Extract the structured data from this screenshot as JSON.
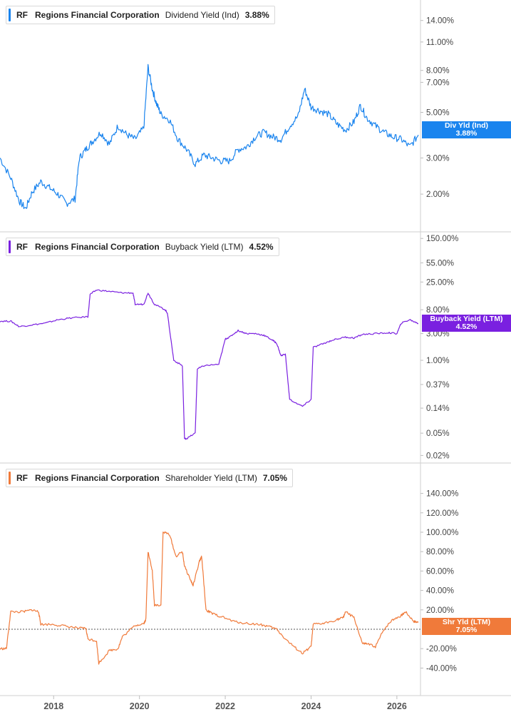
{
  "panels": [
    {
      "ticker": "RF",
      "company": "Regions Financial Corporation",
      "metric": "Dividend Yield (Ind)",
      "value": "3.88%",
      "tag_label": "Div Yld (Ind)",
      "tag_value": "3.88%",
      "color": "#1a84ee",
      "scale": "log",
      "y_ticks": [
        "14.00%",
        "11.00%",
        "8.00%",
        "7.00%",
        "5.00%",
        "3.00%",
        "2.00%"
      ]
    },
    {
      "ticker": "RF",
      "company": "Regions Financial Corporation",
      "metric": "Buyback Yield (LTM)",
      "value": "4.52%",
      "tag_label": "Buyback Yield (LTM)",
      "tag_value": "4.52%",
      "color": "#7a20e0",
      "scale": "log",
      "y_ticks": [
        "150.00%",
        "55.00%",
        "25.00%",
        "8.00%",
        "3.00%",
        "1.00%",
        "0.37%",
        "0.14%",
        "0.05%",
        "0.02%"
      ]
    },
    {
      "ticker": "RF",
      "company": "Regions Financial Corporation",
      "metric": "Shareholder Yield (LTM)",
      "value": "7.05%",
      "tag_label": "Shr Yld (LTM)",
      "tag_value": "7.05%",
      "color": "#f07a3a",
      "scale": "linear",
      "y_ticks": [
        "140.00%",
        "120.00%",
        "100.00%",
        "80.00%",
        "60.00%",
        "40.00%",
        "20.00%",
        "-20.00%",
        "-40.00%"
      ]
    }
  ],
  "x_ticks": [
    "2018",
    "2020",
    "2022",
    "2024",
    "2026"
  ],
  "chart_data": [
    {
      "type": "line",
      "scale": "log",
      "series": [
        {
          "name": "Dividend Yield (Ind)",
          "x": [
            2016.75,
            2017.0,
            2017.2,
            2017.35,
            2017.5,
            2017.7,
            2017.9,
            2018.1,
            2018.3,
            2018.5,
            2018.6,
            2018.75,
            2018.9,
            2019.1,
            2019.3,
            2019.5,
            2019.7,
            2019.9,
            2020.1,
            2020.2,
            2020.3,
            2020.4,
            2020.5,
            2020.7,
            2020.9,
            2021.1,
            2021.3,
            2021.5,
            2021.7,
            2021.9,
            2022.1,
            2022.3,
            2022.5,
            2022.7,
            2022.9,
            2023.1,
            2023.3,
            2023.5,
            2023.7,
            2023.85,
            2024.0,
            2024.2,
            2024.4,
            2024.6,
            2024.8,
            2025.0,
            2025.15,
            2025.3,
            2025.5,
            2025.7,
            2025.9,
            2026.1,
            2026.3,
            2026.5
          ],
          "y": [
            3.0,
            2.4,
            1.85,
            1.7,
            2.05,
            2.3,
            2.15,
            2.0,
            1.8,
            1.9,
            3.0,
            3.3,
            3.6,
            4.0,
            3.5,
            4.3,
            3.9,
            3.7,
            4.2,
            8.3,
            6.5,
            5.5,
            4.9,
            4.6,
            3.7,
            3.3,
            2.8,
            3.1,
            3.0,
            2.9,
            2.9,
            3.3,
            3.4,
            3.8,
            4.0,
            3.8,
            3.7,
            4.3,
            4.8,
            6.5,
            5.3,
            5.1,
            4.9,
            4.4,
            4.1,
            4.5,
            5.4,
            4.7,
            4.3,
            4.0,
            3.8,
            3.7,
            3.4,
            3.88
          ]
        }
      ],
      "ylim": [
        1.6,
        16
      ]
    },
    {
      "type": "line",
      "scale": "log",
      "series": [
        {
          "name": "Buyback Yield (LTM)",
          "x": [
            2016.75,
            2017.0,
            2017.2,
            2017.5,
            2017.8,
            2018.1,
            2018.4,
            2018.8,
            2018.85,
            2019.0,
            2019.3,
            2019.6,
            2019.85,
            2019.9,
            2020.1,
            2020.2,
            2020.35,
            2020.6,
            2020.65,
            2020.8,
            2021.0,
            2021.05,
            2021.1,
            2021.3,
            2021.35,
            2021.5,
            2021.85,
            2022.0,
            2022.1,
            2022.3,
            2022.5,
            2022.7,
            2022.9,
            2023.1,
            2023.2,
            2023.3,
            2023.4,
            2023.5,
            2023.8,
            2024.0,
            2024.05,
            2024.3,
            2024.5,
            2024.8,
            2025.0,
            2025.2,
            2025.5,
            2025.8,
            2026.0,
            2026.1,
            2026.3,
            2026.5
          ],
          "y": [
            5.0,
            5.0,
            4.0,
            4.3,
            4.6,
            5.3,
            5.7,
            6.0,
            15,
            18,
            17,
            16,
            16,
            10,
            10,
            16,
            10,
            8,
            7,
            1.0,
            0.8,
            0.04,
            0.04,
            0.05,
            0.7,
            0.8,
            0.85,
            2.4,
            2.6,
            3.4,
            3.0,
            3.0,
            2.8,
            2.3,
            2.0,
            1.2,
            1.3,
            0.2,
            0.15,
            0.2,
            1.7,
            2.0,
            2.3,
            2.6,
            2.5,
            2.9,
            3.0,
            3.1,
            3.0,
            4.6,
            5.3,
            4.52
          ]
        }
      ],
      "ylim": [
        0.016,
        180
      ]
    },
    {
      "type": "line",
      "scale": "linear",
      "series": [
        {
          "name": "Shareholder Yield (LTM)",
          "x": [
            2016.75,
            2016.9,
            2017.0,
            2017.3,
            2017.5,
            2017.65,
            2017.7,
            2018.0,
            2018.3,
            2018.6,
            2018.75,
            2018.8,
            2019.0,
            2019.05,
            2019.3,
            2019.5,
            2019.6,
            2019.9,
            2020.1,
            2020.15,
            2020.2,
            2020.3,
            2020.35,
            2020.5,
            2020.55,
            2020.7,
            2020.85,
            2021.0,
            2021.05,
            2021.2,
            2021.25,
            2021.4,
            2021.45,
            2021.55,
            2021.7,
            2021.9,
            2022.2,
            2022.5,
            2022.8,
            2023.0,
            2023.2,
            2023.4,
            2023.6,
            2023.8,
            2024.0,
            2024.05,
            2024.3,
            2024.6,
            2024.75,
            2024.8,
            2025.0,
            2025.2,
            2025.3,
            2025.5,
            2025.7,
            2025.9,
            2026.1,
            2026.2,
            2026.4,
            2026.5
          ],
          "y": [
            -20,
            -20,
            18,
            18,
            20,
            18,
            5,
            5,
            3,
            1,
            1,
            -10,
            -12,
            -35,
            -22,
            -20,
            -8,
            4,
            6,
            10,
            80,
            60,
            25,
            25,
            100,
            98,
            75,
            80,
            65,
            50,
            45,
            70,
            75,
            20,
            16,
            13,
            8,
            6,
            5,
            3,
            0,
            -10,
            -18,
            -25,
            -18,
            5,
            6,
            10,
            12,
            18,
            12,
            -15,
            -15,
            -18,
            0,
            10,
            14,
            18,
            8,
            7.05
          ]
        }
      ],
      "ylim": [
        -50,
        150
      ],
      "reference_line": 0
    }
  ],
  "x_axis_range": [
    2016.75,
    2026.55
  ]
}
